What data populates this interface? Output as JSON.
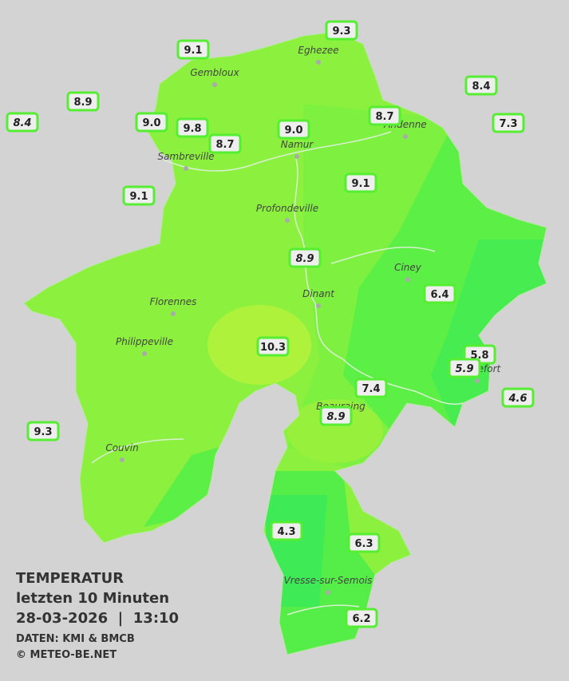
{
  "legend": {
    "title": "TEMPERATUR",
    "period": "letzten 10 Minuten",
    "datetime": "28-03-2026  |  13:10",
    "source": "DATEN: KMI & BMCB",
    "copyright": "© METEO-BE.NET"
  },
  "cities": [
    "Eghezee",
    "Gembloux",
    "Andenne",
    "Namur",
    "Sambreville",
    "Profondeville",
    "Ciney",
    "Dinant",
    "Florennes",
    "Philippeville",
    "Rochefort",
    "Beauraing",
    "Couvin",
    "Vresse-sur-Semois"
  ],
  "stations": [
    "9.3",
    "9.1",
    "8.4",
    "8.9",
    "8.4",
    "9.0",
    "9.8",
    "8.7",
    "9.0",
    "8.7",
    "7.3",
    "9.1",
    "9.1",
    "8.9",
    "6.4",
    "10.3",
    "5.8",
    "5.9",
    "4.6",
    "7.4",
    "8.9",
    "9.3",
    "4.3",
    "6.3",
    "6.2"
  ]
}
